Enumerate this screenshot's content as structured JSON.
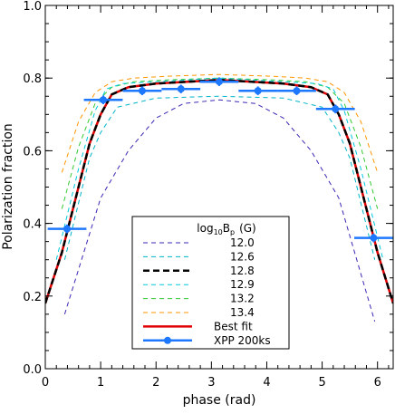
{
  "chart_data": {
    "type": "line",
    "xlabel": "phase (rad)",
    "ylabel": "Polarization fraction",
    "xlim": [
      0,
      6.283
    ],
    "ylim": [
      0,
      1.0
    ],
    "x_ticks": [
      0,
      1,
      2,
      3,
      4,
      5,
      6
    ],
    "y_ticks": [
      0.0,
      0.2,
      0.4,
      0.6,
      0.8,
      1.0
    ],
    "x_tick_labels": [
      "0",
      "1",
      "2",
      "3",
      "4",
      "5",
      "6"
    ],
    "y_tick_labels": [
      "0.0",
      "0.2",
      "0.4",
      "0.6",
      "0.8",
      "1.0"
    ],
    "grid": false,
    "legend_position": "bottom-center",
    "legend_title_parts": [
      "log",
      "10",
      "B",
      "p",
      "(G)"
    ],
    "series": [
      {
        "name": "12.0",
        "style": "dashed",
        "color": "#3a28b4",
        "x": [
          0.35,
          1.0,
          1.5,
          2.0,
          2.5,
          3.14,
          3.8,
          4.3,
          4.8,
          5.3,
          5.95
        ],
        "y": [
          0.15,
          0.47,
          0.6,
          0.69,
          0.73,
          0.74,
          0.73,
          0.69,
          0.6,
          0.47,
          0.13
        ]
      },
      {
        "name": "12.6",
        "style": "dashed",
        "color": "#00b4c8",
        "x": [
          0.35,
          0.8,
          1.0,
          1.3,
          2.0,
          3.14,
          4.3,
          5.0,
          5.3,
          5.5,
          5.95
        ],
        "y": [
          0.3,
          0.58,
          0.65,
          0.72,
          0.745,
          0.75,
          0.745,
          0.72,
          0.65,
          0.58,
          0.3
        ]
      },
      {
        "name": "12.8",
        "style": "dashed-bold",
        "color": "#000000",
        "x": [
          0.0,
          0.3,
          0.6,
          0.8,
          1.0,
          1.2,
          1.5,
          2.0,
          3.14,
          4.3,
          4.8,
          5.1,
          5.3,
          5.5,
          5.7,
          6.0,
          6.283
        ],
        "y": [
          0.18,
          0.32,
          0.5,
          0.62,
          0.7,
          0.755,
          0.775,
          0.785,
          0.795,
          0.785,
          0.775,
          0.755,
          0.7,
          0.62,
          0.5,
          0.32,
          0.18
        ]
      },
      {
        "name": "12.9",
        "style": "dashed",
        "color": "#00c8dc",
        "x": [
          0.2,
          0.6,
          0.9,
          1.1,
          1.4,
          2.0,
          3.14,
          4.3,
          4.9,
          5.2,
          5.4,
          5.7,
          6.1
        ],
        "y": [
          0.3,
          0.55,
          0.71,
          0.77,
          0.785,
          0.79,
          0.8,
          0.79,
          0.785,
          0.77,
          0.71,
          0.55,
          0.3
        ]
      },
      {
        "name": "13.2",
        "style": "dashed",
        "color": "#32c832",
        "x": [
          0.3,
          0.6,
          0.9,
          1.2,
          1.6,
          2.2,
          3.14,
          4.1,
          4.7,
          5.1,
          5.4,
          5.7,
          6.0
        ],
        "y": [
          0.44,
          0.61,
          0.73,
          0.775,
          0.79,
          0.795,
          0.8,
          0.795,
          0.79,
          0.775,
          0.73,
          0.61,
          0.44
        ]
      },
      {
        "name": "13.4",
        "style": "dashed",
        "color": "#ff9600",
        "x": [
          0.3,
          0.6,
          0.9,
          1.2,
          1.6,
          2.2,
          3.14,
          4.1,
          4.7,
          5.1,
          5.4,
          5.7,
          6.0
        ],
        "y": [
          0.54,
          0.68,
          0.76,
          0.79,
          0.8,
          0.805,
          0.81,
          0.805,
          0.8,
          0.79,
          0.76,
          0.68,
          0.54
        ]
      },
      {
        "name": "Best fit",
        "style": "solid",
        "color": "#e00000",
        "x": [
          0.0,
          0.3,
          0.6,
          0.8,
          1.0,
          1.2,
          1.5,
          2.0,
          3.14,
          4.3,
          4.8,
          5.1,
          5.3,
          5.5,
          5.7,
          6.0,
          6.283
        ],
        "y": [
          0.18,
          0.32,
          0.5,
          0.62,
          0.7,
          0.755,
          0.775,
          0.785,
          0.795,
          0.785,
          0.775,
          0.755,
          0.7,
          0.62,
          0.5,
          0.32,
          0.18
        ]
      },
      {
        "name": "XPP 200ks",
        "style": "points",
        "color": "#1e78ff",
        "x": [
          0.393,
          1.047,
          1.75,
          2.45,
          3.14,
          3.84,
          4.54,
          5.24,
          5.93
        ],
        "x_err": [
          0.35,
          0.35,
          0.35,
          0.35,
          0.35,
          0.35,
          0.35,
          0.35,
          0.35
        ],
        "y": [
          0.385,
          0.74,
          0.765,
          0.77,
          0.79,
          0.765,
          0.765,
          0.715,
          0.36
        ],
        "y_err": [
          0.012,
          0.012,
          0.012,
          0.012,
          0.012,
          0.012,
          0.012,
          0.012,
          0.012
        ]
      }
    ]
  }
}
